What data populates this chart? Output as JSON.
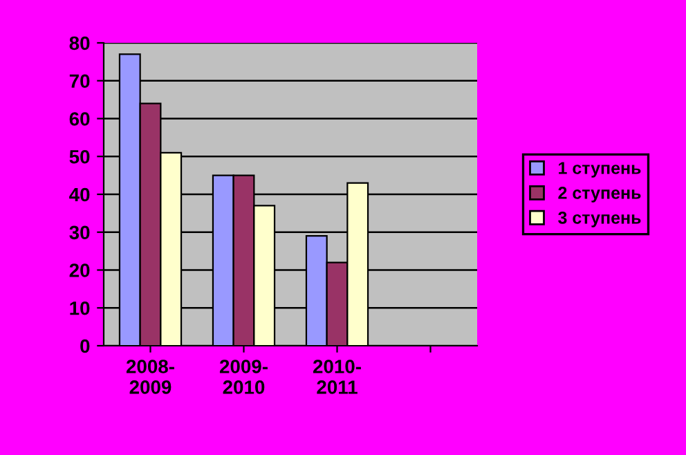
{
  "chart_data": {
    "type": "bar",
    "categories": [
      "2008-\n2009",
      "2009-\n2010",
      "2010-\n2011",
      null
    ],
    "series": [
      {
        "name": "1 ступень",
        "color": "#9999ff",
        "values": [
          77,
          45,
          29,
          null
        ]
      },
      {
        "name": "2 ступень",
        "color": "#993366",
        "values": [
          64,
          45,
          22,
          null
        ]
      },
      {
        "name": "3 ступень",
        "color": "#ffffcc",
        "values": [
          51,
          37,
          43,
          null
        ]
      }
    ],
    "ylim": [
      0,
      80
    ],
    "yticks": [
      0,
      10,
      20,
      30,
      40,
      50,
      60,
      70,
      80
    ],
    "grid": "y",
    "legend": "right"
  }
}
